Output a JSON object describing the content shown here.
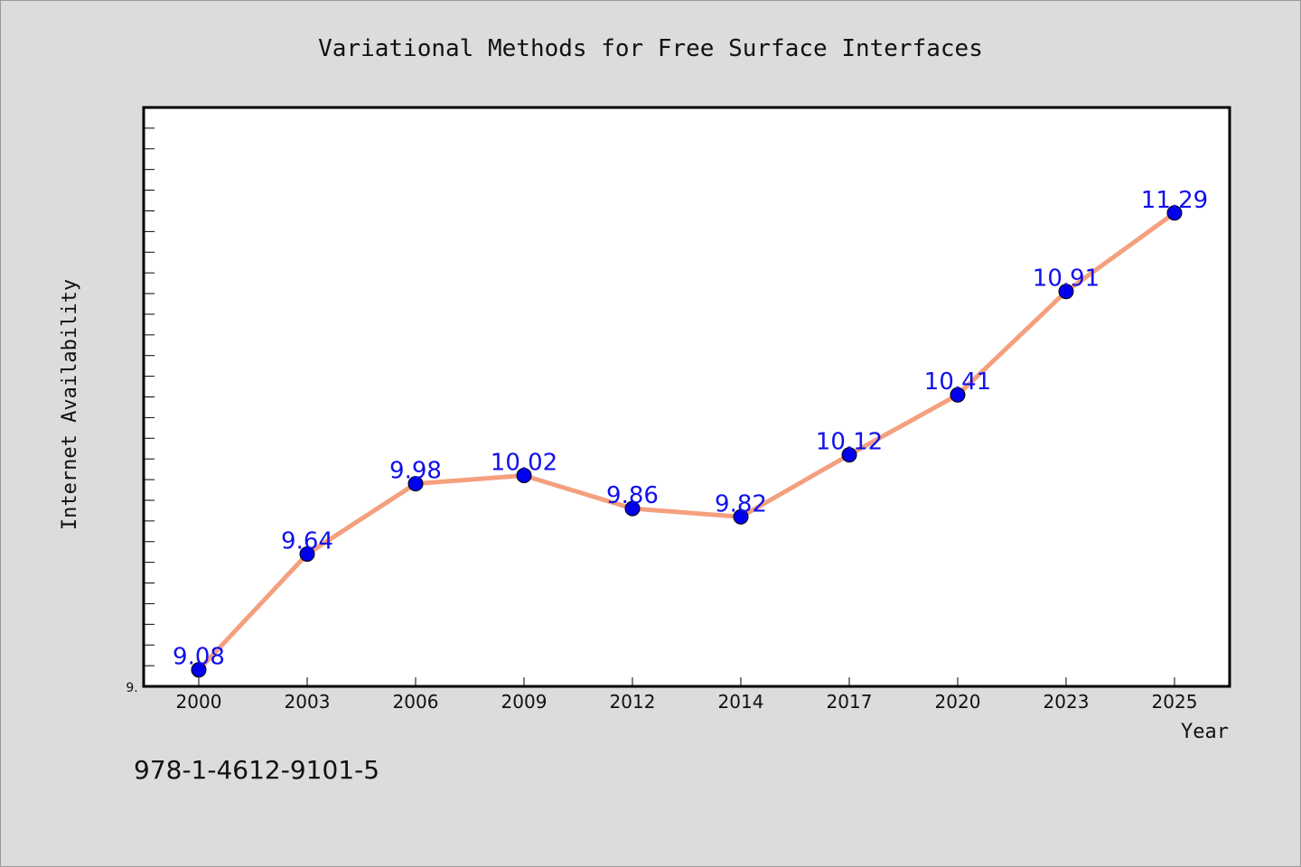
{
  "chart_data": {
    "type": "line",
    "title": "Variational Methods for Free Surface Interfaces",
    "xlabel": "Year",
    "ylabel": "Internet Availability",
    "categories": [
      "2000",
      "2003",
      "2006",
      "2009",
      "2012",
      "2014",
      "2017",
      "2020",
      "2023",
      "2025"
    ],
    "series": [
      {
        "values": [
          9.08,
          9.64,
          9.98,
          10.02,
          9.86,
          9.82,
          10.12,
          10.41,
          10.91,
          11.29
        ],
        "labels": [
          "9.08",
          "9.64",
          "9.98",
          "10.02",
          "9.86",
          "9.82",
          "10.12",
          "10.41",
          "10.91",
          "11.29"
        ],
        "line_color": "#f4a07e",
        "marker_color": "#0000ee"
      }
    ],
    "ylim": [
      9.0,
      11.8
    ],
    "ytick_label": "9.",
    "grid": false,
    "legend": "none"
  },
  "footer": {
    "isbn": "978-1-4612-9101-5"
  },
  "colors": {
    "background": "#dcdcdc",
    "plot_background": "#ffffff",
    "data_label": "#1010ee"
  }
}
